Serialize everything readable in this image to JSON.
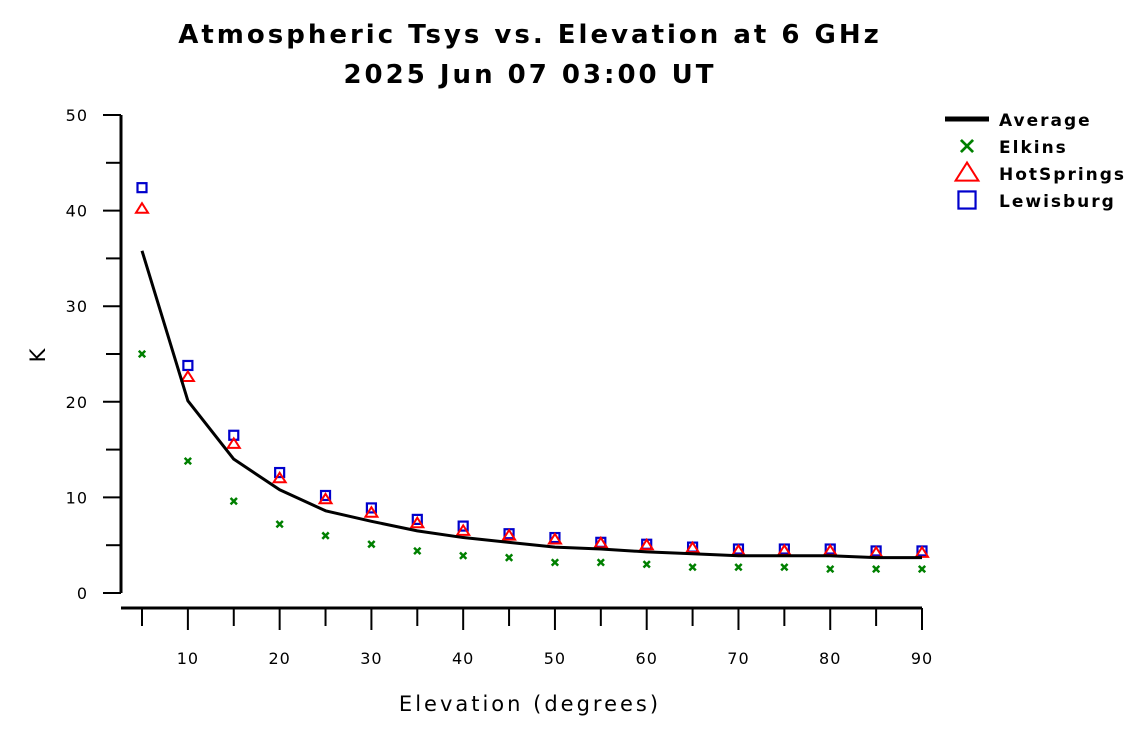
{
  "chart_data": {
    "type": "scatter",
    "title": "Atmospheric Tsys vs. Elevation at 6 GHz",
    "subtitle": "2025 Jun 07 03:00 UT",
    "xlabel": "Elevation (degrees)",
    "ylabel": "K",
    "xlim": [
      5,
      90
    ],
    "ylim": [
      0,
      50
    ],
    "x_ticks": [
      10,
      20,
      30,
      40,
      50,
      60,
      70,
      80,
      90
    ],
    "y_ticks": [
      0,
      10,
      20,
      30,
      40,
      50
    ],
    "grid": false,
    "legend_position": "top-right",
    "x": [
      5,
      10,
      15,
      20,
      25,
      30,
      35,
      40,
      45,
      50,
      55,
      60,
      65,
      70,
      75,
      80,
      85,
      90
    ],
    "series": [
      {
        "name": "Average",
        "style": "line",
        "color": "#000000",
        "values": [
          35.8,
          20.1,
          14.0,
          10.8,
          8.6,
          7.5,
          6.5,
          5.8,
          5.3,
          4.8,
          4.6,
          4.3,
          4.1,
          3.9,
          3.9,
          3.9,
          3.7,
          3.7
        ]
      },
      {
        "name": "Elkins",
        "style": "x",
        "color": "#008000",
        "values": [
          25.0,
          13.8,
          9.6,
          7.2,
          6.0,
          5.1,
          4.4,
          3.9,
          3.7,
          3.2,
          3.2,
          3.0,
          2.7,
          2.7,
          2.7,
          2.5,
          2.5,
          2.5
        ]
      },
      {
        "name": "HotSprings",
        "style": "triangle",
        "color": "#ff0000",
        "values": [
          40.2,
          22.6,
          15.6,
          12.0,
          9.8,
          8.4,
          7.3,
          6.5,
          6.0,
          5.6,
          5.2,
          5.0,
          4.7,
          4.4,
          4.4,
          4.4,
          4.2,
          4.2
        ]
      },
      {
        "name": "Lewisburg",
        "style": "square",
        "color": "#0000cc",
        "values": [
          42.4,
          23.8,
          16.5,
          12.6,
          10.2,
          8.9,
          7.7,
          7.0,
          6.2,
          5.8,
          5.3,
          5.1,
          4.8,
          4.6,
          4.6,
          4.6,
          4.4,
          4.4
        ]
      }
    ]
  }
}
